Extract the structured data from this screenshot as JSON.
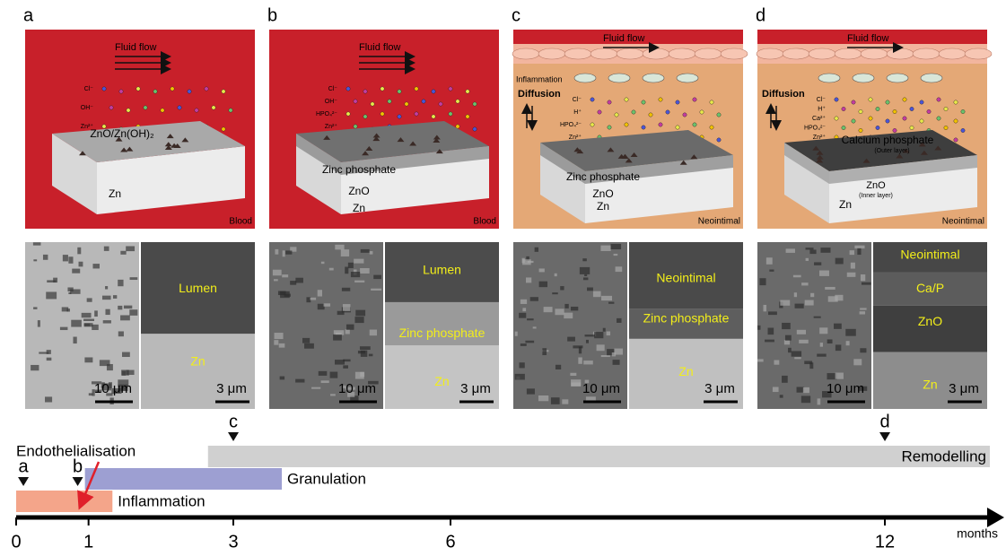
{
  "panels": [
    {
      "letter": "a",
      "background": "#c8202a",
      "fluid_flow": "Fluid flow",
      "ions": [
        "Cl⁻",
        "OH⁻",
        "Zn²⁺"
      ],
      "side_labels": [],
      "coating": [
        "ZnO/Zn(OH)₂"
      ],
      "substrate": "Zn",
      "medium": "Blood",
      "micrograph": {
        "scale_left": "10 μm",
        "scale_right": "3 μm",
        "layers": [
          "Lumen",
          "Zn"
        ]
      }
    },
    {
      "letter": "b",
      "background": "#c8202a",
      "fluid_flow": "Fluid flow",
      "ions": [
        "Cl⁻",
        "OH⁻",
        "HPO₄²⁻",
        "Zn²⁺"
      ],
      "side_labels": [],
      "coating": [
        "Zinc phosphate",
        "ZnO"
      ],
      "substrate": "Zn",
      "medium": "Blood",
      "micrograph": {
        "scale_left": "10 μm",
        "scale_right": "3 μm",
        "layers": [
          "Lumen",
          "Zinc phosphate",
          "Zn"
        ]
      }
    },
    {
      "letter": "c",
      "background": "#e4a876",
      "fluid_flow": "Fluid flow",
      "ions": [
        "Cl⁻",
        "H⁺",
        "HPO₄²⁻",
        "Zn²⁺"
      ],
      "side_labels": [
        "Inflammation",
        "Diffusion"
      ],
      "coating": [
        "Zinc phosphate",
        "ZnO"
      ],
      "substrate": "Zn",
      "medium": "Neointimal",
      "micrograph": {
        "scale_left": "10 μm",
        "scale_right": "3 μm",
        "layers": [
          "Neointimal",
          "Zinc phosphate",
          "Zn"
        ]
      }
    },
    {
      "letter": "d",
      "background": "#e4a876",
      "fluid_flow": "Fluid flow",
      "ions": [
        "Cl⁻",
        "H⁺",
        "Ca²⁺",
        "HPO₄²⁻",
        "Zn²⁺"
      ],
      "side_labels": [
        "Diffusion"
      ],
      "coating": [
        "Calcium phosphate",
        "(Outer layer)",
        "ZnO",
        "(Inner layer)"
      ],
      "substrate": "Zn",
      "medium": "Neointimal",
      "micrograph": {
        "scale_left": "10 μm",
        "scale_right": "3 μm",
        "layers": [
          "Neointimal",
          "Ca/P",
          "ZnO",
          "Zn"
        ]
      }
    }
  ],
  "timeline": {
    "xlim": [
      0,
      13.45
    ],
    "ticks": [
      0,
      1,
      3,
      6,
      12
    ],
    "unit": "months",
    "phases": [
      {
        "name": "Inflammation",
        "start": 0,
        "end": 1.33,
        "color": "#f4a58a"
      },
      {
        "name": "Granulation",
        "start": 0.95,
        "end": 3.67,
        "color": "#9d9fd2"
      },
      {
        "name": "Remodelling",
        "start": 2.65,
        "end": 13.45,
        "color": "#d0d0d0"
      }
    ],
    "markers": [
      {
        "label": "a",
        "month": 0.1
      },
      {
        "label": "b",
        "month": 0.85
      },
      {
        "label": "c",
        "month": 3
      },
      {
        "label": "d",
        "month": 12
      }
    ],
    "event": {
      "label": "Endothelialisation",
      "month": 0.85
    }
  }
}
